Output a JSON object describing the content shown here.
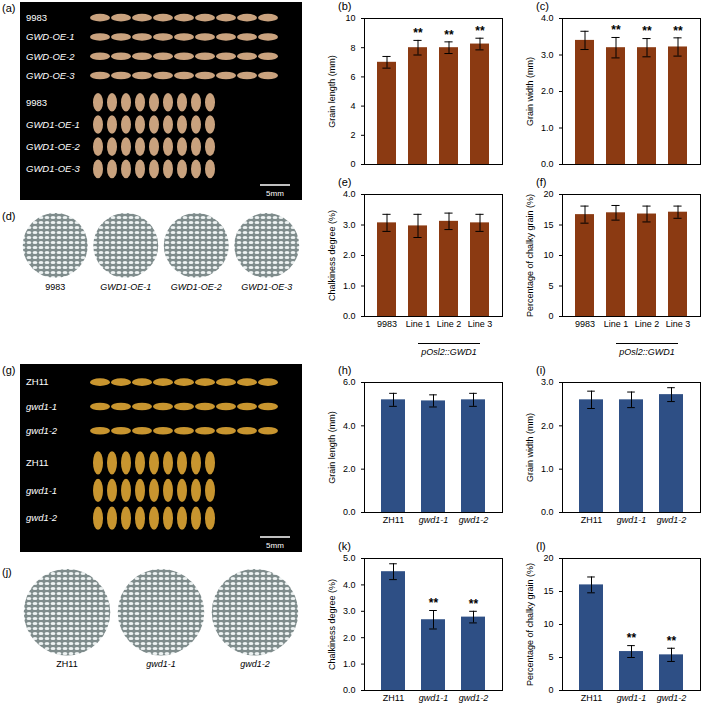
{
  "chart_data": [
    {
      "type": "bar",
      "title": "(b)",
      "y_label": "Grain length (mm)",
      "categories": [
        "9983",
        "Line 1",
        "Line 2",
        "Line 3"
      ],
      "values": [
        7.0,
        8.0,
        8.0,
        8.25
      ],
      "errors": [
        0.4,
        0.5,
        0.4,
        0.4
      ],
      "color": "#8b3a12",
      "ylim": [
        0,
        10
      ],
      "yticks": [
        0,
        2,
        4,
        6,
        8,
        10
      ],
      "tick_labels": "y",
      "annotations": [
        {
          "category": "Line 1",
          "text": "**"
        },
        {
          "category": "Line 2",
          "text": "**"
        },
        {
          "category": "Line 3",
          "text": "**"
        }
      ]
    },
    {
      "type": "bar",
      "title": "(c)",
      "y_label": "Grain width (mm)",
      "categories": [
        "9983",
        "Line 1",
        "Line 2",
        "Line 3"
      ],
      "values": [
        3.4,
        3.2,
        3.2,
        3.22
      ],
      "errors": [
        0.25,
        0.28,
        0.25,
        0.25
      ],
      "color": "#8b3a12",
      "ylim": [
        0,
        4
      ],
      "yticks": [
        0,
        1,
        2,
        3,
        4
      ],
      "tick_labels": "y",
      "annotations": [
        {
          "category": "Line 1",
          "text": "**"
        },
        {
          "category": "Line 2",
          "text": "**"
        },
        {
          "category": "Line 3",
          "text": "**"
        }
      ]
    },
    {
      "type": "bar",
      "title": "(e)",
      "y_label": "Chalkiness degree (%)",
      "categories": [
        "9983",
        "Line 1",
        "Line 2",
        "Line 3"
      ],
      "values": [
        3.07,
        2.97,
        3.12,
        3.07
      ],
      "errors": [
        0.28,
        0.38,
        0.27,
        0.28
      ],
      "color": "#8b3a12",
      "ylim": [
        0,
        4
      ],
      "yticks": [
        0,
        1,
        2,
        3,
        4
      ],
      "x_group_label": {
        "text": "pOsl2::GWD1",
        "categories": [
          "Line 1",
          "Line 2",
          "Line 3"
        ]
      }
    },
    {
      "type": "bar",
      "title": "(f)",
      "y_label": "Percentage of chalky grain (%)",
      "categories": [
        "9983",
        "Line 1",
        "Line 2",
        "Line 3"
      ],
      "values": [
        16.7,
        17.0,
        16.8,
        17.1
      ],
      "errors": [
        1.4,
        1.2,
        1.3,
        1.0
      ],
      "color": "#8b3a12",
      "ylim": [
        0,
        20
      ],
      "yticks": [
        0,
        5,
        10,
        15,
        20
      ],
      "x_group_label": {
        "text": "pOsl2::GWD1",
        "categories": [
          "Line 1",
          "Line 2",
          "Line 3"
        ]
      }
    },
    {
      "type": "bar",
      "title": "(h)",
      "y_label": "Grain length (mm)",
      "categories": [
        "ZH11",
        "gwd1-1",
        "gwd1-2"
      ],
      "values": [
        5.2,
        5.15,
        5.2
      ],
      "errors": [
        0.3,
        0.28,
        0.3
      ],
      "color": "#2e4f85",
      "ylim": [
        0,
        6
      ],
      "yticks": [
        0,
        2,
        4,
        6
      ]
    },
    {
      "type": "bar",
      "title": "(i)",
      "y_label": "Grain width (mm)",
      "categories": [
        "ZH11",
        "gwd1-1",
        "gwd1-2"
      ],
      "values": [
        2.6,
        2.6,
        2.72
      ],
      "errors": [
        0.2,
        0.18,
        0.16
      ],
      "color": "#2e4f85",
      "ylim": [
        0,
        3
      ],
      "yticks": [
        0,
        1,
        2,
        3
      ]
    },
    {
      "type": "bar",
      "title": "(k)",
      "y_label": "Chalkiness degree (%)",
      "categories": [
        "ZH11",
        "gwd1-1",
        "gwd1-2"
      ],
      "values": [
        4.5,
        2.68,
        2.78
      ],
      "errors": [
        0.3,
        0.35,
        0.22
      ],
      "color": "#2e4f85",
      "ylim": [
        0,
        5
      ],
      "yticks": [
        0,
        1,
        2,
        3,
        4,
        5
      ],
      "annotations": [
        {
          "category": "gwd1-1",
          "text": "**"
        },
        {
          "category": "gwd1-2",
          "text": "**"
        }
      ]
    },
    {
      "type": "bar",
      "title": "(l)",
      "y_label": "Percentage of chalky grain (%)",
      "categories": [
        "ZH11",
        "gwd1-1",
        "gwd1-2"
      ],
      "values": [
        16.0,
        5.9,
        5.4
      ],
      "errors": [
        1.2,
        0.9,
        1.0
      ],
      "color": "#2e4f85",
      "ylim": [
        0,
        20
      ],
      "yticks": [
        0,
        5,
        10,
        15,
        20
      ],
      "annotations": [
        {
          "category": "gwd1-1",
          "text": "**"
        },
        {
          "category": "gwd1-2",
          "text": "**"
        }
      ]
    }
  ],
  "image_panels": [
    {
      "title": "(a)",
      "groups": [
        [
          "9983",
          "GWD-OE-1",
          "GWD-OE-2",
          "GWD-OE-3"
        ],
        [
          "9983",
          "GWD1-OE-1",
          "GWD1-OE-2",
          "GWD1-OE-3"
        ]
      ],
      "scale_bar": "5mm"
    },
    {
      "title": "(d)",
      "labels": [
        "9983",
        "GWD1-OE-1",
        "GWD1-OE-2",
        "GWD1-OE-3"
      ]
    },
    {
      "title": "(g)",
      "groups": [
        [
          "ZH11",
          "gwd1-1",
          "gwd1-2"
        ],
        [
          "ZH11",
          "gwd1-1",
          "gwd1-2"
        ]
      ],
      "scale_bar": "5mm"
    },
    {
      "title": "(j)",
      "labels": [
        "ZH11",
        "gwd1-1",
        "gwd1-2"
      ]
    }
  ]
}
